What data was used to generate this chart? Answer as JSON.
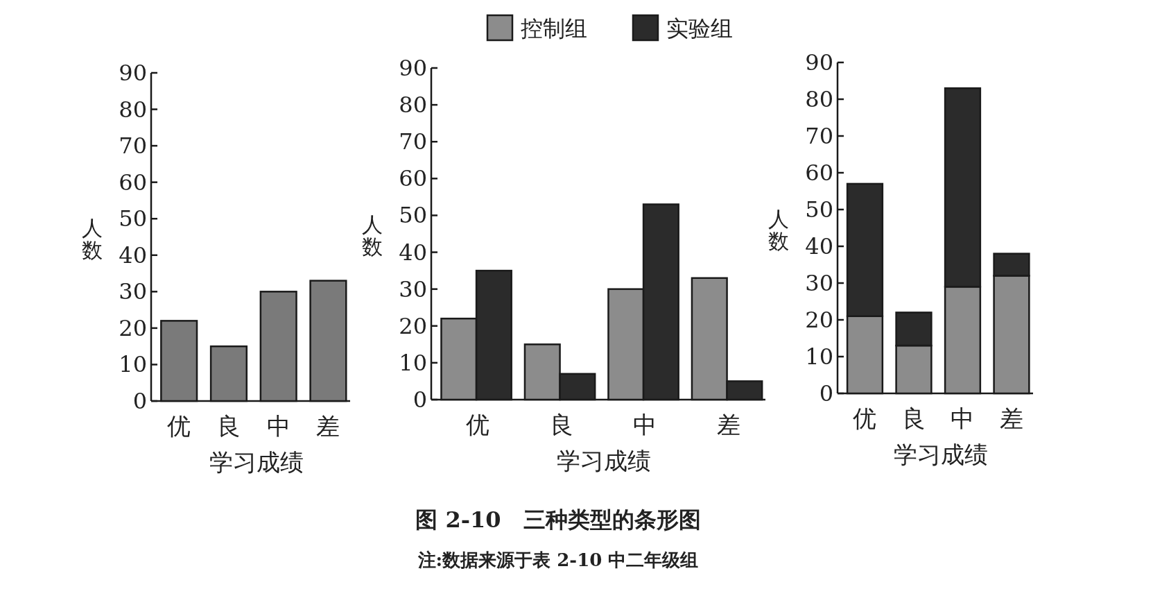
{
  "chart_data": [
    {
      "type": "bar",
      "ylabel": "人数",
      "xlabel": "学习成绩",
      "categories": [
        "优",
        "良",
        "中",
        "差"
      ],
      "ylim": [
        0,
        90
      ],
      "yticks": [
        0,
        10,
        20,
        30,
        40,
        50,
        60,
        70,
        80,
        90
      ],
      "series": [
        {
          "color": "#7a7a7a",
          "values": [
            22,
            15,
            30,
            33
          ]
        }
      ]
    },
    {
      "type": "bar",
      "ylabel": "人数",
      "xlabel": "学习成绩",
      "categories": [
        "优",
        "良",
        "中",
        "差"
      ],
      "ylim": [
        0,
        90
      ],
      "yticks": [
        0,
        10,
        20,
        30,
        40,
        50,
        60,
        70,
        80,
        90
      ],
      "legend": "top",
      "title": "图 2-10　三种类型的条形图",
      "annotations": [
        "注:数据来源于表 2-10 中二年级组"
      ],
      "series": [
        {
          "name": "控制组",
          "color": "#8c8c8c",
          "values": [
            22,
            15,
            30,
            33
          ]
        },
        {
          "name": "实验组",
          "color": "#2b2b2b",
          "values": [
            35,
            7,
            53,
            5
          ]
        }
      ]
    },
    {
      "type": "bar",
      "stacked": true,
      "ylabel": "人数",
      "xlabel": "学习成绩",
      "categories": [
        "优",
        "良",
        "中",
        "差"
      ],
      "ylim": [
        0,
        90
      ],
      "yticks": [
        0,
        10,
        20,
        30,
        40,
        50,
        60,
        70,
        80,
        90
      ],
      "series": [
        {
          "color": "#8c8c8c",
          "values": [
            21,
            13,
            29,
            32
          ]
        },
        {
          "color": "#2b2b2b",
          "values": [
            36,
            9,
            54,
            6
          ]
        }
      ]
    }
  ]
}
